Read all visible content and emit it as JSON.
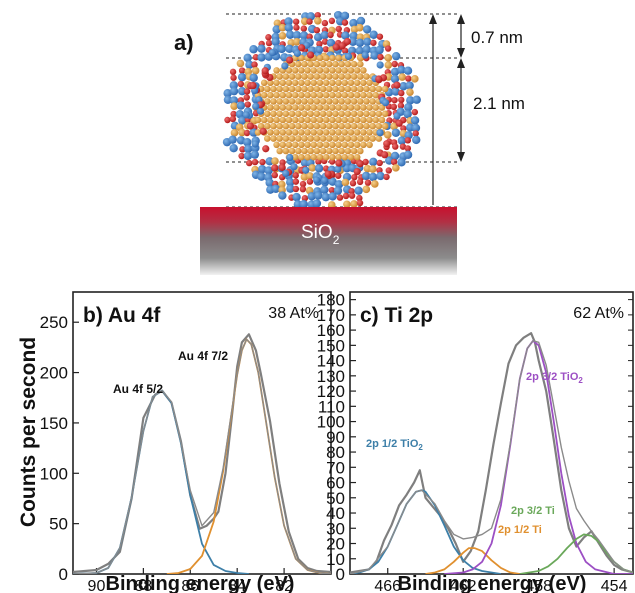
{
  "figure": {
    "panel_a": {
      "label": "a)",
      "dimensions": [
        "0.7 nm",
        "2.1 nm"
      ],
      "substrate_label": "SiO",
      "substrate_subscript": "2"
    },
    "y_axis_label": "Counts per second",
    "x_axis_label": "Binding energy (eV)"
  },
  "chart_data": [
    {
      "type": "line",
      "title": "b) Au 4f",
      "annotation": "38 At%",
      "xlabel": "Binding energy (eV)",
      "ylabel": "Counts per second",
      "x_reversed": true,
      "xlim": [
        91,
        80
      ],
      "ylim": [
        0,
        280
      ],
      "x_ticks": [
        90,
        88,
        86,
        84,
        82
      ],
      "y_ticks": [
        0,
        50,
        100,
        150,
        200,
        250
      ],
      "peak_labels": [
        {
          "text": "Au 4f 5/2",
          "x": 87.2,
          "y": 182
        },
        {
          "text": "Au 4f 7/2",
          "x": 83.6,
          "y": 233
        }
      ],
      "series": [
        {
          "role": "measured",
          "color": "#7f7f7f",
          "x": [
            91,
            90,
            89.5,
            89,
            88.5,
            88,
            87.5,
            87.2,
            86.8,
            86.4,
            86,
            85.6,
            85.3,
            85,
            84.8,
            84.5,
            84.2,
            84,
            83.8,
            83.5,
            83.2,
            83,
            82.6,
            82.2,
            81.8,
            81.4,
            81,
            80.6,
            80
          ],
          "y": [
            2,
            4,
            10,
            22,
            75,
            155,
            178,
            182,
            170,
            132,
            78,
            45,
            48,
            55,
            62,
            100,
            162,
            206,
            230,
            238,
            222,
            200,
            152,
            90,
            42,
            15,
            6,
            3,
            2
          ]
        },
        {
          "role": "fit",
          "name": "Au 4f 5/2",
          "color": "#3d7fa8",
          "x": [
            91,
            90,
            89.5,
            89,
            88.5,
            88,
            87.6,
            87.2,
            86.8,
            86.4,
            86,
            85.5,
            85,
            84.5,
            84,
            83.5
          ],
          "y": [
            0,
            1,
            6,
            26,
            76,
            142,
            176,
            182,
            170,
            130,
            78,
            30,
            9,
            3,
            1,
            0
          ]
        },
        {
          "role": "fit",
          "name": "Au 4f 7/2",
          "color": "#e0902f",
          "x": [
            87,
            86.5,
            86,
            85.5,
            85,
            84.6,
            84.2,
            84,
            83.8,
            83.6,
            83.4,
            83.1,
            82.8,
            82.4,
            82,
            81.5,
            81,
            80.5,
            80
          ],
          "y": [
            0,
            1,
            5,
            18,
            52,
            102,
            166,
            198,
            222,
            233,
            228,
            200,
            156,
            96,
            48,
            15,
            4,
            1,
            0
          ]
        },
        {
          "role": "envelope",
          "color": "#8a8a8a",
          "x": [
            91,
            90,
            89.5,
            89,
            88.5,
            88,
            87.6,
            87.2,
            86.8,
            86.4,
            86,
            85.5,
            85,
            84.6,
            84.2,
            84,
            83.8,
            83.6,
            83.4,
            83.1,
            82.8,
            82.4,
            82,
            81.5,
            81,
            80.5,
            80
          ],
          "y": [
            0,
            1,
            6,
            26,
            76,
            142,
            176,
            182,
            171,
            131,
            83,
            48,
            61,
            105,
            167,
            198,
            222,
            233,
            228,
            200,
            156,
            96,
            48,
            15,
            4,
            1,
            0
          ]
        }
      ]
    },
    {
      "type": "line",
      "title": "c) Ti 2p",
      "annotation": "62 At%",
      "xlabel": "Binding energy (eV)",
      "x_reversed": true,
      "xlim": [
        468,
        453
      ],
      "ylim": [
        0,
        185
      ],
      "x_ticks": [
        466,
        462,
        458,
        454
      ],
      "y_ticks": [
        0,
        10,
        20,
        30,
        40,
        50,
        60,
        70,
        80,
        90,
        100,
        110,
        120,
        130,
        140,
        150,
        160,
        170,
        180
      ],
      "peak_labels": [
        {
          "text": "2p 1/2 TiO",
          "sub": "2",
          "x": 465.5,
          "y": 62,
          "color": "#3d7fa8"
        },
        {
          "text": "2p 3/2 TiO",
          "sub": "2",
          "x": 457.3,
          "y": 117,
          "color": "#9c4fc4"
        },
        {
          "text": "2p 3/2 Ti",
          "x": 455.6,
          "y": 32,
          "color": "#6aa85a"
        },
        {
          "text": "2p 1/2 Ti",
          "x": 461.2,
          "y": 10,
          "color": "#e0902f"
        }
      ],
      "series": [
        {
          "role": "measured",
          "color": "#7f7f7f",
          "x": [
            468,
            467.5,
            467,
            466.6,
            466.2,
            465.8,
            465.4,
            465,
            464.6,
            464.3,
            464,
            463.6,
            463.2,
            462.8,
            462.4,
            462,
            461.6,
            461.2,
            460.8,
            460.4,
            460,
            459.6,
            459.2,
            458.8,
            458.4,
            458.2,
            458,
            457.6,
            457.2,
            456.8,
            456.4,
            456,
            455.6,
            455.2,
            454.8,
            454.4,
            454,
            453.6,
            453
          ],
          "y": [
            1,
            2,
            3,
            8,
            22,
            32,
            45,
            52,
            60,
            68,
            50,
            44,
            38,
            30,
            20,
            8,
            15,
            28,
            55,
            85,
            112,
            138,
            150,
            155,
            158,
            152,
            140,
            120,
            88,
            55,
            30,
            18,
            24,
            28,
            20,
            12,
            6,
            3,
            1
          ]
        },
        {
          "role": "fit",
          "name": "2p 1/2 TiO2",
          "color": "#3d7fa8",
          "x": [
            468,
            467.5,
            467,
            466.5,
            466,
            465.5,
            465,
            464.5,
            464.2,
            464,
            463.5,
            463,
            462.5,
            462,
            461.5,
            461,
            460.5,
            460
          ],
          "y": [
            0,
            1,
            3,
            8,
            18,
            32,
            46,
            54,
            55,
            54,
            45,
            32,
            18,
            9,
            4,
            2,
            1,
            0
          ]
        },
        {
          "role": "fit",
          "name": "2p 1/2 Ti",
          "color": "#e0902f",
          "x": [
            464,
            463.5,
            463,
            462.5,
            462,
            461.7,
            461.4,
            461,
            460.5,
            460,
            459.5,
            459
          ],
          "y": [
            0,
            1,
            3,
            8,
            14,
            17,
            17,
            15,
            9,
            4,
            1,
            0
          ]
        },
        {
          "role": "fit",
          "name": "2p 3/2 TiO2",
          "color": "#9c4fc4",
          "x": [
            463,
            462,
            461.5,
            461,
            460.5,
            460,
            459.5,
            459,
            458.6,
            458.3,
            458,
            457.6,
            457.2,
            456.8,
            456.4,
            456,
            455.5,
            455,
            454,
            453
          ],
          "y": [
            0,
            1,
            3,
            8,
            20,
            45,
            85,
            128,
            148,
            153,
            150,
            132,
            100,
            66,
            38,
            20,
            8,
            3,
            0,
            0
          ]
        },
        {
          "role": "fit",
          "name": "2p 3/2 Ti",
          "color": "#6aa85a",
          "x": [
            459,
            458.5,
            458,
            457.5,
            457,
            456.5,
            456,
            455.6,
            455.2,
            454.8,
            454.4,
            454,
            453.5,
            453
          ],
          "y": [
            0,
            1,
            2,
            5,
            10,
            17,
            23,
            26,
            25,
            21,
            14,
            8,
            3,
            1
          ]
        },
        {
          "role": "envelope",
          "color": "#8a8a8a",
          "x": [
            468,
            467,
            466,
            465,
            464.5,
            464.2,
            463.5,
            463,
            462.5,
            462,
            461.5,
            461,
            460.5,
            460,
            459.5,
            459,
            458.6,
            458.3,
            458,
            457.6,
            457.2,
            456.8,
            456.4,
            456,
            455.6,
            455.2,
            454.8,
            454.4,
            454,
            453.5,
            453
          ],
          "y": [
            0,
            3,
            18,
            46,
            54,
            55,
            46,
            35,
            26,
            23,
            24,
            26,
            30,
            49,
            86,
            128,
            148,
            153,
            152,
            137,
            110,
            83,
            61,
            43,
            35,
            28,
            22,
            15,
            8,
            3,
            1
          ]
        }
      ]
    }
  ]
}
